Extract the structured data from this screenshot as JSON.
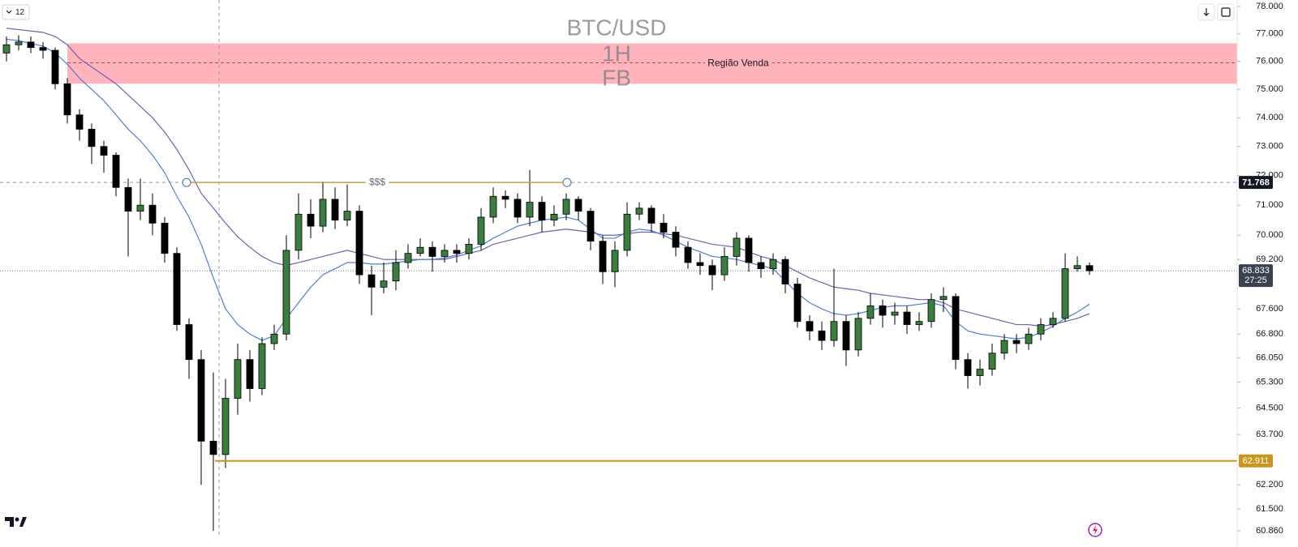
{
  "chart_data": {
    "type": "candlestick",
    "interval_selector": "12",
    "watermark": {
      "symbol": "BTC/USD",
      "interval": "1H",
      "label": "FB"
    },
    "log_scale": true,
    "ylim": [
      60700,
      78240
    ],
    "yticks": [
      {
        "value": 78000,
        "label": "78.000"
      },
      {
        "value": 77000,
        "label": "77.000"
      },
      {
        "value": 76000,
        "label": "76.000"
      },
      {
        "value": 75000,
        "label": "75.000"
      },
      {
        "value": 74000,
        "label": "74.000"
      },
      {
        "value": 73000,
        "label": "73.000"
      },
      {
        "value": 72000,
        "label": "72.000"
      },
      {
        "value": 71000,
        "label": "71.000"
      },
      {
        "value": 70000,
        "label": "70.000"
      },
      {
        "value": 69200,
        "label": "69.200"
      },
      {
        "value": 67600,
        "label": "67.600"
      },
      {
        "value": 66800,
        "label": "66.800"
      },
      {
        "value": 66050,
        "label": "66.050"
      },
      {
        "value": 65300,
        "label": "65.300"
      },
      {
        "value": 64500,
        "label": "64.500"
      },
      {
        "value": 63700,
        "label": "63.700"
      },
      {
        "value": 62200,
        "label": "62.200"
      },
      {
        "value": 61500,
        "label": "61.500"
      },
      {
        "value": 60860,
        "label": "60.860"
      }
    ],
    "up_color": "#3a7d3e",
    "down_color": "#000000",
    "open": [
      76300,
      76600,
      76700,
      76500,
      76400,
      75200,
      74100,
      73600,
      73000,
      72700,
      71600,
      70800,
      71000,
      70400,
      69400,
      67100,
      66000,
      63500,
      63100,
      64800,
      66000,
      65100,
      66500,
      66800,
      69500,
      70700,
      70300,
      71200,
      70500,
      70800,
      68700,
      68300,
      68500,
      69100,
      69400,
      69600,
      69300,
      69500,
      69400,
      69700,
      70600,
      71300,
      71200,
      70600,
      71100,
      70500,
      70700,
      71200,
      70800,
      69800,
      68800,
      69500,
      70700,
      70900,
      70400,
      70100,
      69600,
      69100,
      69000,
      68700,
      69300,
      69900,
      69100,
      68900,
      69200,
      68400,
      67200,
      66900,
      66600,
      67200,
      66300,
      67300,
      67700,
      67400,
      67500,
      67100,
      67200,
      67900,
      68000,
      66000,
      65500,
      65700,
      66200,
      66600,
      66500,
      66800,
      67100,
      67300,
      68900,
      69000
    ],
    "high": [
      76900,
      76950,
      76900,
      76700,
      76500,
      75400,
      74300,
      73800,
      73200,
      72800,
      71900,
      71900,
      71400,
      70600,
      69600,
      67300,
      66300,
      65600,
      65400,
      66500,
      66300,
      66700,
      67100,
      70000,
      71400,
      71200,
      71800,
      71600,
      71700,
      71000,
      69000,
      69100,
      69500,
      69700,
      69900,
      69800,
      69700,
      69700,
      69900,
      70900,
      71600,
      71500,
      71400,
      72200,
      71300,
      71000,
      71400,
      71300,
      70900,
      70000,
      69800,
      71100,
      71100,
      71000,
      70700,
      70300,
      69800,
      69400,
      69200,
      69600,
      70100,
      70000,
      69300,
      69400,
      69300,
      68600,
      67400,
      67200,
      68900,
      67400,
      67500,
      68100,
      67900,
      67800,
      67700,
      67500,
      68100,
      68300,
      68100,
      66200,
      66000,
      66500,
      66800,
      66800,
      67000,
      67300,
      67500,
      69400,
      69300,
      69100
    ],
    "low": [
      76000,
      76400,
      76300,
      76100,
      75000,
      73800,
      73200,
      72400,
      72100,
      71300,
      69300,
      70500,
      70000,
      69100,
      66900,
      65400,
      62200,
      60860,
      62700,
      64300,
      64700,
      64900,
      66300,
      66600,
      69200,
      69900,
      70100,
      70200,
      70300,
      68400,
      67400,
      68100,
      68200,
      68900,
      69300,
      68800,
      69100,
      69100,
      69200,
      69500,
      70400,
      70900,
      70400,
      70300,
      70100,
      70300,
      70500,
      70500,
      69500,
      68400,
      68300,
      69300,
      70500,
      70100,
      69900,
      69300,
      68900,
      68700,
      68200,
      68500,
      69000,
      68800,
      68600,
      68700,
      68100,
      67000,
      66600,
      66300,
      66400,
      65800,
      66100,
      67100,
      67000,
      67100,
      66800,
      66900,
      67000,
      67500,
      65700,
      65100,
      65200,
      65500,
      66000,
      66200,
      66300,
      66600,
      67000,
      67200,
      68800,
      68700
    ],
    "close": [
      76600,
      76700,
      76500,
      76400,
      75200,
      74100,
      73600,
      73000,
      72700,
      71600,
      70800,
      71000,
      70400,
      69400,
      67100,
      66000,
      63500,
      63100,
      64800,
      66000,
      65100,
      66500,
      66800,
      69500,
      70700,
      70300,
      71200,
      70500,
      70800,
      68700,
      68300,
      68500,
      69100,
      69400,
      69600,
      69300,
      69500,
      69400,
      69700,
      70600,
      71300,
      71200,
      70600,
      71100,
      70500,
      70700,
      71200,
      70800,
      69800,
      68800,
      69500,
      70700,
      70900,
      70400,
      70100,
      69600,
      69100,
      69000,
      68700,
      69300,
      69900,
      69100,
      68900,
      69200,
      68400,
      67200,
      66900,
      66600,
      67200,
      66300,
      67300,
      67700,
      67400,
      67500,
      67100,
      67200,
      67900,
      68000,
      66000,
      65500,
      65700,
      66200,
      66600,
      66500,
      66800,
      67100,
      67300,
      68900,
      69000,
      68833
    ],
    "moving_averages": [
      {
        "color": "#6f5fb8",
        "values": [
          77200,
          77150,
          77100,
          77050,
          76900,
          76600,
          76100,
          75800,
          75500,
          75200,
          74800,
          74400,
          74000,
          73500,
          72900,
          72200,
          71400,
          70900,
          70400,
          69950,
          69600,
          69300,
          69100,
          69000,
          69100,
          69200,
          69300,
          69400,
          69500,
          69400,
          69300,
          69200,
          69200,
          69200,
          69200,
          69200,
          69200,
          69300,
          69400,
          69500,
          69700,
          69800,
          69900,
          70000,
          70100,
          70150,
          70200,
          70150,
          70100,
          70000,
          70000,
          70050,
          70100,
          70100,
          70050,
          70000,
          69900,
          69800,
          69700,
          69650,
          69600,
          69450,
          69300,
          69200,
          69000,
          68800,
          68600,
          68450,
          68300,
          68250,
          68200,
          68100,
          68050,
          68000,
          67950,
          67900,
          67900,
          67800,
          67600,
          67500,
          67400,
          67300,
          67200,
          67100,
          67100,
          67050,
          67100,
          67200,
          67300,
          67450
        ]
      },
      {
        "color": "#4a7fe0",
        "values": [
          76800,
          76750,
          76650,
          76550,
          76300,
          75900,
          75400,
          75000,
          74600,
          74100,
          73600,
          73200,
          72700,
          72100,
          71300,
          70600,
          69700,
          68600,
          67600,
          67100,
          66800,
          66600,
          66750,
          67300,
          67800,
          68300,
          68700,
          68900,
          69100,
          69100,
          69050,
          69050,
          69100,
          69150,
          69200,
          69200,
          69250,
          69350,
          69500,
          69650,
          69900,
          70100,
          70300,
          70400,
          70500,
          70550,
          70600,
          70500,
          70200,
          69900,
          69900,
          70100,
          70200,
          70150,
          70000,
          69800,
          69600,
          69450,
          69300,
          69250,
          69200,
          69100,
          69000,
          68900,
          68500,
          68100,
          67800,
          67600,
          67450,
          67400,
          67450,
          67550,
          67650,
          67700,
          67700,
          67750,
          67800,
          67700,
          67200,
          66900,
          66800,
          66750,
          66700,
          66650,
          66700,
          66850,
          67050,
          67300,
          67500,
          67750
        ]
      }
    ],
    "zones": [
      {
        "label": "Região Venda",
        "from": 75200,
        "to": 76650,
        "mid": 75950,
        "color": "#ffb3ba"
      }
    ],
    "levels": [
      {
        "value": 71768,
        "text": "$$$",
        "color": "#c9a23a"
      },
      {
        "value": 62911,
        "label": "62.911",
        "color": "#c9961e"
      }
    ],
    "crosshair": {
      "value": 71768,
      "label": "71.768"
    },
    "last_price": {
      "value": 68833,
      "label": "68.833",
      "countdown": "27:25",
      "color": "#3a4150"
    }
  }
}
